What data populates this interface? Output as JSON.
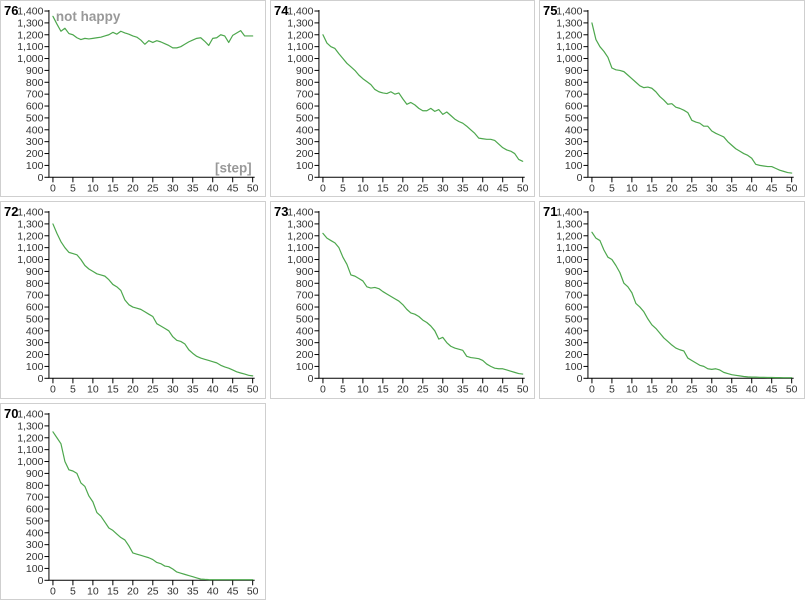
{
  "colors": {
    "line": "#4da74d",
    "axis": "#000000",
    "tick_label": "#333333",
    "id_label": "#000000",
    "annotation": "#999999",
    "cell_border": "#cfcfcf",
    "background": "#ffffff"
  },
  "grid": {
    "rows": 3,
    "cols": 3,
    "filled_cells": 7,
    "empty_cells": 2
  },
  "axes": {
    "ylim": [
      0,
      1400
    ],
    "y_tick_step": 100,
    "y_tick_labels": [
      "0",
      "100",
      "200",
      "300",
      "400",
      "500",
      "600",
      "700",
      "800",
      "900",
      "1,000",
      "1,100",
      "1,200",
      "1,300",
      "1,400"
    ],
    "xlim": [
      0,
      50
    ],
    "x_tick_step": 5,
    "x_tick_labels": [
      "0",
      "5",
      "10",
      "15",
      "20",
      "25",
      "30",
      "35",
      "40",
      "45",
      "50"
    ]
  },
  "chart_data": [
    {
      "type": "line",
      "id_label": "76",
      "annotation": "not happy",
      "x_axis_annotation": "[step]",
      "x_start": 0,
      "x_step": 1,
      "values": [
        1355,
        1290,
        1230,
        1255,
        1210,
        1200,
        1175,
        1160,
        1170,
        1165,
        1170,
        1175,
        1180,
        1190,
        1200,
        1220,
        1205,
        1230,
        1215,
        1205,
        1190,
        1180,
        1155,
        1120,
        1150,
        1135,
        1150,
        1140,
        1125,
        1110,
        1090,
        1090,
        1100,
        1120,
        1140,
        1155,
        1170,
        1175,
        1145,
        1110,
        1170,
        1175,
        1200,
        1190,
        1135,
        1195,
        1215,
        1235,
        1190,
        1190,
        1190
      ]
    },
    {
      "type": "line",
      "id_label": "74",
      "annotation": "",
      "x_axis_annotation": "",
      "x_start": 0,
      "x_step": 1,
      "values": [
        1200,
        1130,
        1100,
        1085,
        1040,
        1000,
        960,
        930,
        900,
        860,
        830,
        805,
        780,
        740,
        720,
        710,
        705,
        720,
        700,
        710,
        660,
        615,
        630,
        610,
        580,
        560,
        560,
        580,
        555,
        570,
        530,
        550,
        520,
        490,
        470,
        455,
        430,
        400,
        370,
        330,
        325,
        320,
        320,
        310,
        280,
        250,
        230,
        220,
        200,
        150,
        135
      ]
    },
    {
      "type": "line",
      "id_label": "75",
      "annotation": "",
      "x_axis_annotation": "",
      "x_start": 0,
      "x_step": 1,
      "values": [
        1300,
        1160,
        1100,
        1060,
        1010,
        920,
        905,
        900,
        890,
        860,
        830,
        800,
        770,
        755,
        760,
        750,
        720,
        680,
        650,
        615,
        620,
        590,
        580,
        565,
        545,
        480,
        465,
        455,
        430,
        430,
        390,
        370,
        355,
        340,
        300,
        270,
        240,
        220,
        200,
        185,
        160,
        110,
        100,
        95,
        90,
        90,
        75,
        60,
        50,
        40,
        35
      ]
    },
    {
      "type": "line",
      "id_label": "72",
      "annotation": "",
      "x_axis_annotation": "",
      "x_start": 0,
      "x_step": 1,
      "values": [
        1300,
        1220,
        1150,
        1100,
        1060,
        1050,
        1040,
        1000,
        950,
        920,
        900,
        880,
        870,
        860,
        830,
        790,
        770,
        740,
        660,
        620,
        600,
        590,
        580,
        560,
        540,
        520,
        460,
        440,
        420,
        400,
        350,
        320,
        310,
        290,
        240,
        210,
        185,
        170,
        160,
        150,
        140,
        130,
        110,
        95,
        85,
        70,
        55,
        45,
        35,
        25,
        20
      ]
    },
    {
      "type": "line",
      "id_label": "73",
      "annotation": "",
      "x_axis_annotation": "",
      "x_start": 0,
      "x_step": 1,
      "values": [
        1220,
        1180,
        1160,
        1140,
        1100,
        1020,
        960,
        870,
        860,
        840,
        820,
        770,
        760,
        765,
        755,
        730,
        710,
        690,
        670,
        650,
        620,
        580,
        550,
        540,
        520,
        490,
        470,
        440,
        400,
        330,
        345,
        300,
        270,
        255,
        245,
        235,
        185,
        175,
        170,
        165,
        150,
        120,
        100,
        85,
        80,
        80,
        70,
        60,
        50,
        40,
        35
      ]
    },
    {
      "type": "line",
      "id_label": "71",
      "annotation": "",
      "x_axis_annotation": "",
      "x_start": 0,
      "x_step": 1,
      "values": [
        1230,
        1180,
        1160,
        1080,
        1020,
        1000,
        950,
        890,
        800,
        770,
        720,
        630,
        600,
        560,
        500,
        450,
        420,
        380,
        340,
        310,
        280,
        255,
        240,
        230,
        170,
        150,
        130,
        110,
        100,
        80,
        75,
        80,
        70,
        50,
        40,
        30,
        25,
        20,
        15,
        12,
        10,
        10,
        8,
        8,
        7,
        7,
        6,
        6,
        5,
        5,
        5
      ]
    },
    {
      "type": "line",
      "id_label": "70",
      "annotation": "",
      "x_axis_annotation": "",
      "x_start": 0,
      "x_step": 1,
      "values": [
        1250,
        1200,
        1150,
        1000,
        930,
        920,
        900,
        820,
        790,
        710,
        660,
        570,
        540,
        490,
        440,
        420,
        390,
        360,
        340,
        290,
        230,
        220,
        210,
        200,
        190,
        175,
        150,
        140,
        120,
        115,
        95,
        70,
        60,
        50,
        40,
        30,
        20,
        10,
        8,
        6,
        5,
        5,
        5,
        5,
        5,
        5,
        5,
        5,
        5,
        5,
        5
      ]
    }
  ]
}
